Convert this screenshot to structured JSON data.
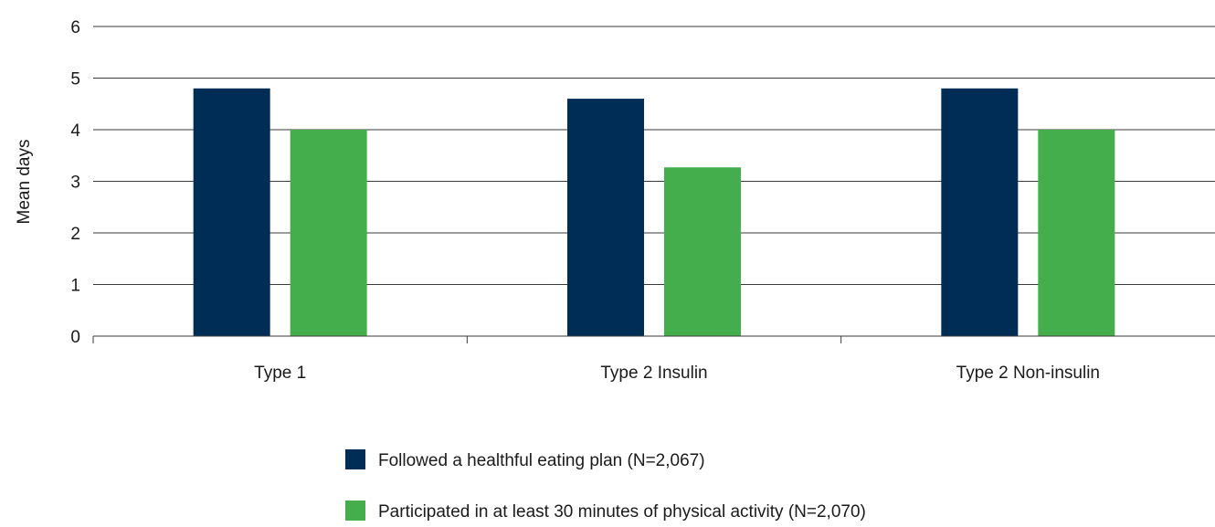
{
  "chart_data": {
    "type": "bar",
    "ylabel": "Mean days",
    "xlabel": "",
    "ylim": [
      0,
      6
    ],
    "yticks": [
      0,
      1,
      2,
      3,
      4,
      5,
      6
    ],
    "grid": true,
    "legend_position": "bottom",
    "categories": [
      "Type 1",
      "Type 2 Insulin",
      "Type 2 Non-insulin"
    ],
    "series": [
      {
        "name": "Followed a healthful eating plan (N=2,067)",
        "color": "#002d56",
        "values": [
          4.8,
          4.6,
          4.8
        ]
      },
      {
        "name": "Participated in at least 30 minutes of physical activity (N=2,070)",
        "color": "#44ad4c",
        "values": [
          4.0,
          3.27,
          4.0
        ]
      }
    ]
  }
}
